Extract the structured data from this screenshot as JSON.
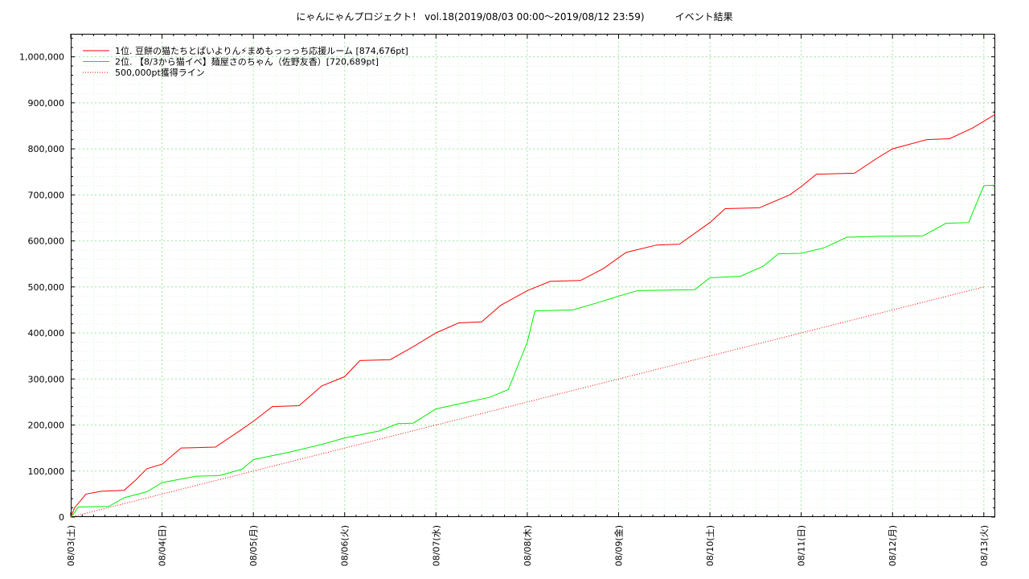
{
  "chart_data": {
    "type": "line",
    "title": "にゃんにゃんプロジェクト！ vol.18(2019/08/03 00:00～2019/08/12 23:59)          イベント結果",
    "xlabel": "",
    "ylabel": "",
    "ylim": [
      0,
      1050000
    ],
    "xlim": [
      "2019-08-03 00:00",
      "2019-08-13 03:00"
    ],
    "grid": true,
    "legend_position": "top-left",
    "x_tick_labels": [
      "08/03(土)",
      "08/04(日)",
      "08/05(月)",
      "08/06(火)",
      "08/07(水)",
      "08/08(木)",
      "08/09(金)",
      "08/10(土)",
      "08/11(日)",
      "08/12(月)",
      "08/13(火)"
    ],
    "y_tick_labels": [
      "0",
      "100,000",
      "200,000",
      "300,000",
      "400,000",
      "500,000",
      "600,000",
      "700,000",
      "800,000",
      "900,000",
      "1,000,000"
    ],
    "series": [
      {
        "name": "1位. 豆餅の猫たちとぱいよりん⚡まめもっっっち応援ルーム [874,676pt]",
        "color": "#ff0000",
        "style": "solid",
        "x": [
          "2019-08-03 00:00",
          "2019-08-03 01:00",
          "2019-08-03 04:00",
          "2019-08-03 08:00",
          "2019-08-03 14:00",
          "2019-08-03 17:00",
          "2019-08-03 20:00",
          "2019-08-04 00:00",
          "2019-08-04 05:00",
          "2019-08-04 14:00",
          "2019-08-04 20:00",
          "2019-08-05 00:00",
          "2019-08-05 05:00",
          "2019-08-05 12:00",
          "2019-08-05 18:00",
          "2019-08-06 00:00",
          "2019-08-06 04:00",
          "2019-08-06 12:00",
          "2019-08-06 18:00",
          "2019-08-07 00:00",
          "2019-08-07 06:00",
          "2019-08-07 12:00",
          "2019-08-07 17:00",
          "2019-08-08 00:00",
          "2019-08-08 06:00",
          "2019-08-08 14:00",
          "2019-08-08 20:00",
          "2019-08-09 02:00",
          "2019-08-09 10:00",
          "2019-08-09 16:00",
          "2019-08-10 00:00",
          "2019-08-10 04:00",
          "2019-08-10 13:00",
          "2019-08-10 21:00",
          "2019-08-11 00:00",
          "2019-08-11 04:00",
          "2019-08-11 14:00",
          "2019-08-11 20:00",
          "2019-08-12 00:00",
          "2019-08-12 09:00",
          "2019-08-12 15:00",
          "2019-08-12 21:00",
          "2019-08-13 00:00",
          "2019-08-13 03:00"
        ],
        "values": [
          0,
          20000,
          50000,
          56000,
          58000,
          80000,
          105000,
          115000,
          150000,
          152000,
          185000,
          208000,
          240000,
          242000,
          285000,
          305000,
          340000,
          342000,
          370000,
          400000,
          422000,
          424000,
          460000,
          492000,
          512000,
          514000,
          540000,
          575000,
          591000,
          593000,
          640000,
          670000,
          672000,
          700000,
          718000,
          745000,
          747000,
          780000,
          800000,
          820000,
          822000,
          845000,
          860000,
          875000
        ]
      },
      {
        "name": "2位. 【8/3から猫イベ】麺屋さのちゃん（佐野友香）[720,689pt]",
        "color": "#00ee00",
        "style": "solid",
        "x": [
          "2019-08-03 00:00",
          "2019-08-03 01:00",
          "2019-08-03 02:00",
          "2019-08-03 10:00",
          "2019-08-03 14:00",
          "2019-08-03 20:00",
          "2019-08-04 00:00",
          "2019-08-04 09:00",
          "2019-08-04 15:00",
          "2019-08-04 21:00",
          "2019-08-05 00:00",
          "2019-08-05 10:00",
          "2019-08-05 18:00",
          "2019-08-06 00:00",
          "2019-08-06 09:00",
          "2019-08-06 14:00",
          "2019-08-06 18:00",
          "2019-08-07 00:00",
          "2019-08-07 09:00",
          "2019-08-07 14:00",
          "2019-08-07 19:00",
          "2019-08-08 00:00",
          "2019-08-08 02:00",
          "2019-08-08 12:00",
          "2019-08-08 19:00",
          "2019-08-09 00:00",
          "2019-08-09 05:00",
          "2019-08-09 20:00",
          "2019-08-10 00:00",
          "2019-08-10 08:00",
          "2019-08-10 14:00",
          "2019-08-10 18:00",
          "2019-08-11 00:00",
          "2019-08-11 06:00",
          "2019-08-11 12:00",
          "2019-08-11 21:00",
          "2019-08-12 00:00",
          "2019-08-12 08:00",
          "2019-08-12 14:00",
          "2019-08-12 20:00",
          "2019-08-12 23:00",
          "2019-08-13 00:00",
          "2019-08-13 03:00"
        ],
        "values": [
          0,
          10000,
          22000,
          23000,
          42000,
          55000,
          75000,
          89000,
          90000,
          104000,
          125000,
          142000,
          158000,
          172000,
          187000,
          203000,
          204000,
          235000,
          251000,
          260000,
          277000,
          380000,
          448000,
          450000,
          467000,
          480000,
          492000,
          494000,
          520000,
          523000,
          545000,
          572000,
          573000,
          585000,
          608000,
          610000,
          610000,
          611000,
          638000,
          640000,
          700000,
          720000,
          721000
        ]
      },
      {
        "name": "500,000pt獲得ライン",
        "color": "#ff0000",
        "style": "dotted",
        "x": [
          "2019-08-03 00:00",
          "2019-08-13 00:00"
        ],
        "values": [
          0,
          500000
        ]
      }
    ]
  }
}
